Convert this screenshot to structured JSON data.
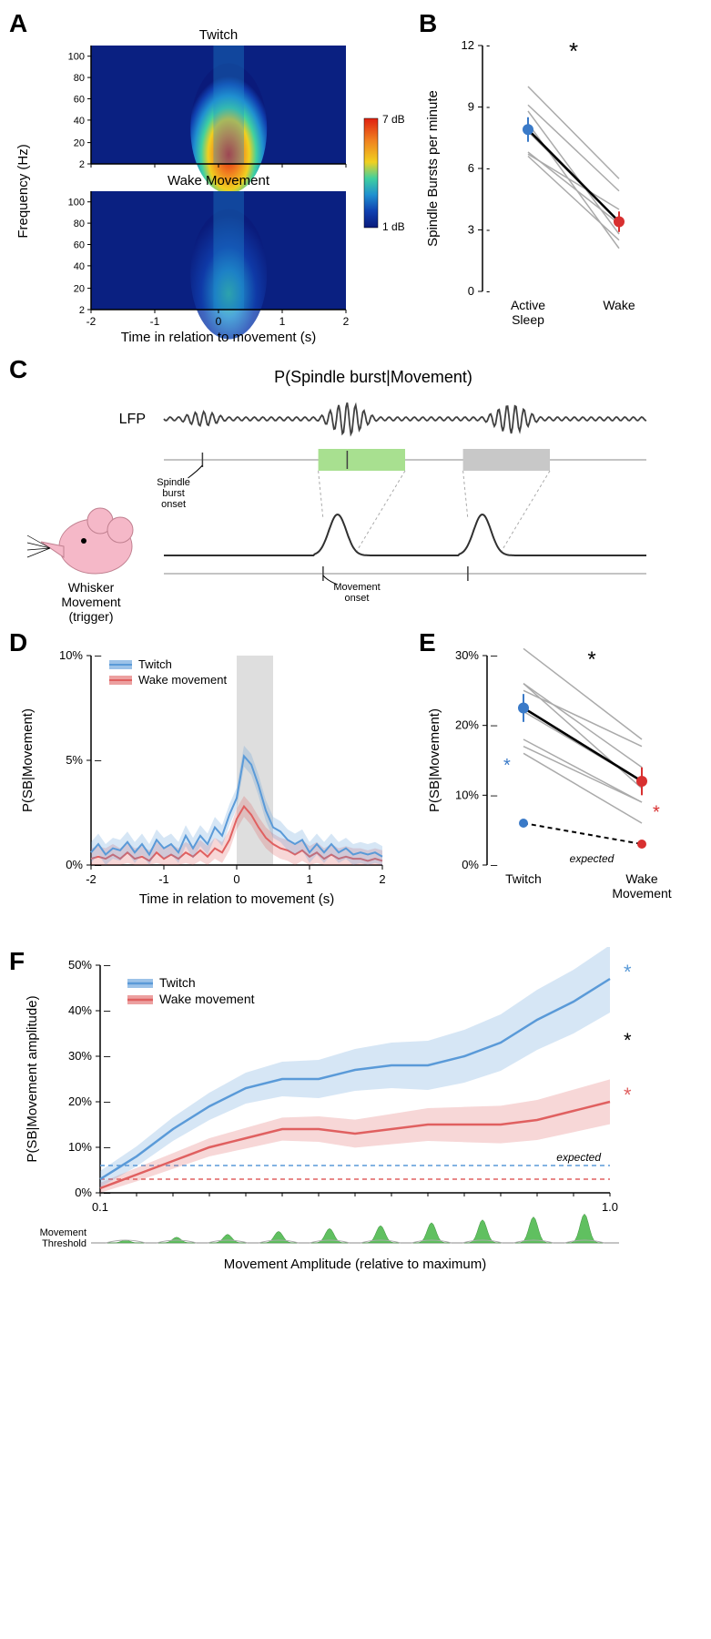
{
  "panelA": {
    "label": "A",
    "title_top": "Twitch",
    "title_bottom": "Wake Movement",
    "xlabel": "Time in relation to movement (s)",
    "ylabel": "Frequency (Hz)",
    "xticks": [
      "-2",
      "-1",
      "0",
      "1",
      "2"
    ],
    "yticks": [
      "2",
      "20",
      "40",
      "60",
      "80",
      "100"
    ],
    "colorbar_max": "7 dB",
    "colorbar_min": "1 dB",
    "heatmap_low": "#0a1a7a",
    "heatmap_mid1": "#1040b0",
    "heatmap_mid2": "#2090d0",
    "heatmap_mid3": "#40d0a0",
    "heatmap_high1": "#f0d020",
    "heatmap_high2": "#f08020",
    "heatmap_high3": "#e02010"
  },
  "panelB": {
    "label": "B",
    "ylabel": "Spindle Bursts per minute",
    "xticks": [
      "Active\nSleep",
      "Wake"
    ],
    "yticks": [
      "0",
      "3",
      "6",
      "9",
      "12"
    ],
    "sig": "*",
    "mean_color_left": "#3a7ac8",
    "mean_color_right": "#d83030",
    "line_color": "#aaaaaa",
    "lines": [
      [
        10.0,
        5.5
      ],
      [
        9.1,
        4.9
      ],
      [
        8.8,
        2.8
      ],
      [
        8.2,
        2.1
      ],
      [
        7.8,
        3.4
      ],
      [
        6.8,
        3.3
      ],
      [
        6.7,
        4.0
      ],
      [
        6.6,
        2.5
      ]
    ],
    "means": [
      7.9,
      3.4
    ]
  },
  "panelC": {
    "label": "C",
    "title": "P(Spindle burst|Movement)",
    "lfp_label": "LFP",
    "whisker_label1": "Whisker",
    "whisker_label2": "Movement",
    "whisker_label3": "(trigger)",
    "spindle_onset": "Spindle\nburst\nonset",
    "movement_onset": "Movement\nonset",
    "hit_color": "#a8e090",
    "miss_color": "#c8c8c8",
    "mouse_color": "#f5b8c8"
  },
  "panelD": {
    "label": "D",
    "ylabel": "P(SB|Movement)",
    "xlabel": "Time in relation to movement (s)",
    "xticks": [
      "-2",
      "-1",
      "0",
      "1",
      "2"
    ],
    "yticks": [
      "0%",
      "5%",
      "10%"
    ],
    "legend_twitch": "Twitch",
    "legend_wake": "Wake movement",
    "twitch_color": "#5a9ad8",
    "wake_color": "#e06060",
    "shade_color": "#d0d0d0",
    "twitch": [
      0.6,
      1.0,
      0.5,
      0.8,
      0.7,
      1.1,
      0.6,
      1.0,
      0.5,
      1.2,
      0.8,
      1.0,
      0.6,
      1.4,
      0.8,
      1.4,
      1.0,
      1.8,
      1.4,
      2.4,
      3.2,
      5.2,
      4.8,
      3.8,
      2.6,
      1.8,
      1.6,
      1.2,
      1.0,
      1.2,
      0.6,
      1.0,
      0.6,
      1.0,
      0.6,
      0.8,
      0.5,
      0.6,
      0.5,
      0.6,
      0.4
    ],
    "wake": [
      0.3,
      0.4,
      0.3,
      0.5,
      0.3,
      0.6,
      0.3,
      0.4,
      0.2,
      0.6,
      0.3,
      0.5,
      0.3,
      0.6,
      0.4,
      0.7,
      0.4,
      0.8,
      0.6,
      1.2,
      2.2,
      2.8,
      2.4,
      1.8,
      1.3,
      1.0,
      0.8,
      0.7,
      0.5,
      0.7,
      0.4,
      0.6,
      0.3,
      0.5,
      0.3,
      0.4,
      0.3,
      0.3,
      0.2,
      0.3,
      0.2
    ]
  },
  "panelE": {
    "label": "E",
    "ylabel": "P(SB|Movement)",
    "xticks": [
      "Twitch",
      "Wake\nMovement"
    ],
    "yticks": [
      "0%",
      "10%",
      "20%",
      "30%"
    ],
    "sig_black": "*",
    "sig_blue": "*",
    "sig_red": "*",
    "expected_label": "expected",
    "twitch_color": "#3a7ac8",
    "wake_color": "#d83030",
    "line_color": "#aaaaaa",
    "lines": [
      [
        31,
        18
      ],
      [
        26,
        11
      ],
      [
        26,
        14
      ],
      [
        25,
        17
      ],
      [
        22,
        12
      ],
      [
        18,
        9
      ],
      [
        16,
        6
      ],
      [
        17,
        9
      ]
    ],
    "means": [
      22.5,
      12
    ],
    "expected": [
      6,
      3
    ]
  },
  "panelF": {
    "label": "F",
    "ylabel": "P(SB|Movement amplitude)",
    "xlabel": "Movement Amplitude (relative to maximum)",
    "xticks": [
      "0.1",
      "1.0"
    ],
    "yticks": [
      "0%",
      "10%",
      "20%",
      "30%",
      "40%",
      "50%"
    ],
    "legend_twitch": "Twitch",
    "legend_wake": "Wake movement",
    "expected_label": "expected",
    "twitch_color": "#5a9ad8",
    "wake_color": "#e06060",
    "sig_black": "*",
    "sig_blue": "*",
    "sig_red": "*",
    "thresh_label1": "Movement",
    "thresh_label2": "Threshold",
    "bump_color": "#60c060",
    "twitch": [
      3,
      8,
      14,
      19,
      23,
      25,
      25,
      27,
      28,
      28,
      30,
      33,
      38,
      42,
      47
    ],
    "wake": [
      1,
      4,
      7,
      10,
      12,
      14,
      14,
      13,
      14,
      15,
      15,
      15,
      16,
      18,
      20
    ],
    "expected_t": 6,
    "expected_w": 3
  }
}
